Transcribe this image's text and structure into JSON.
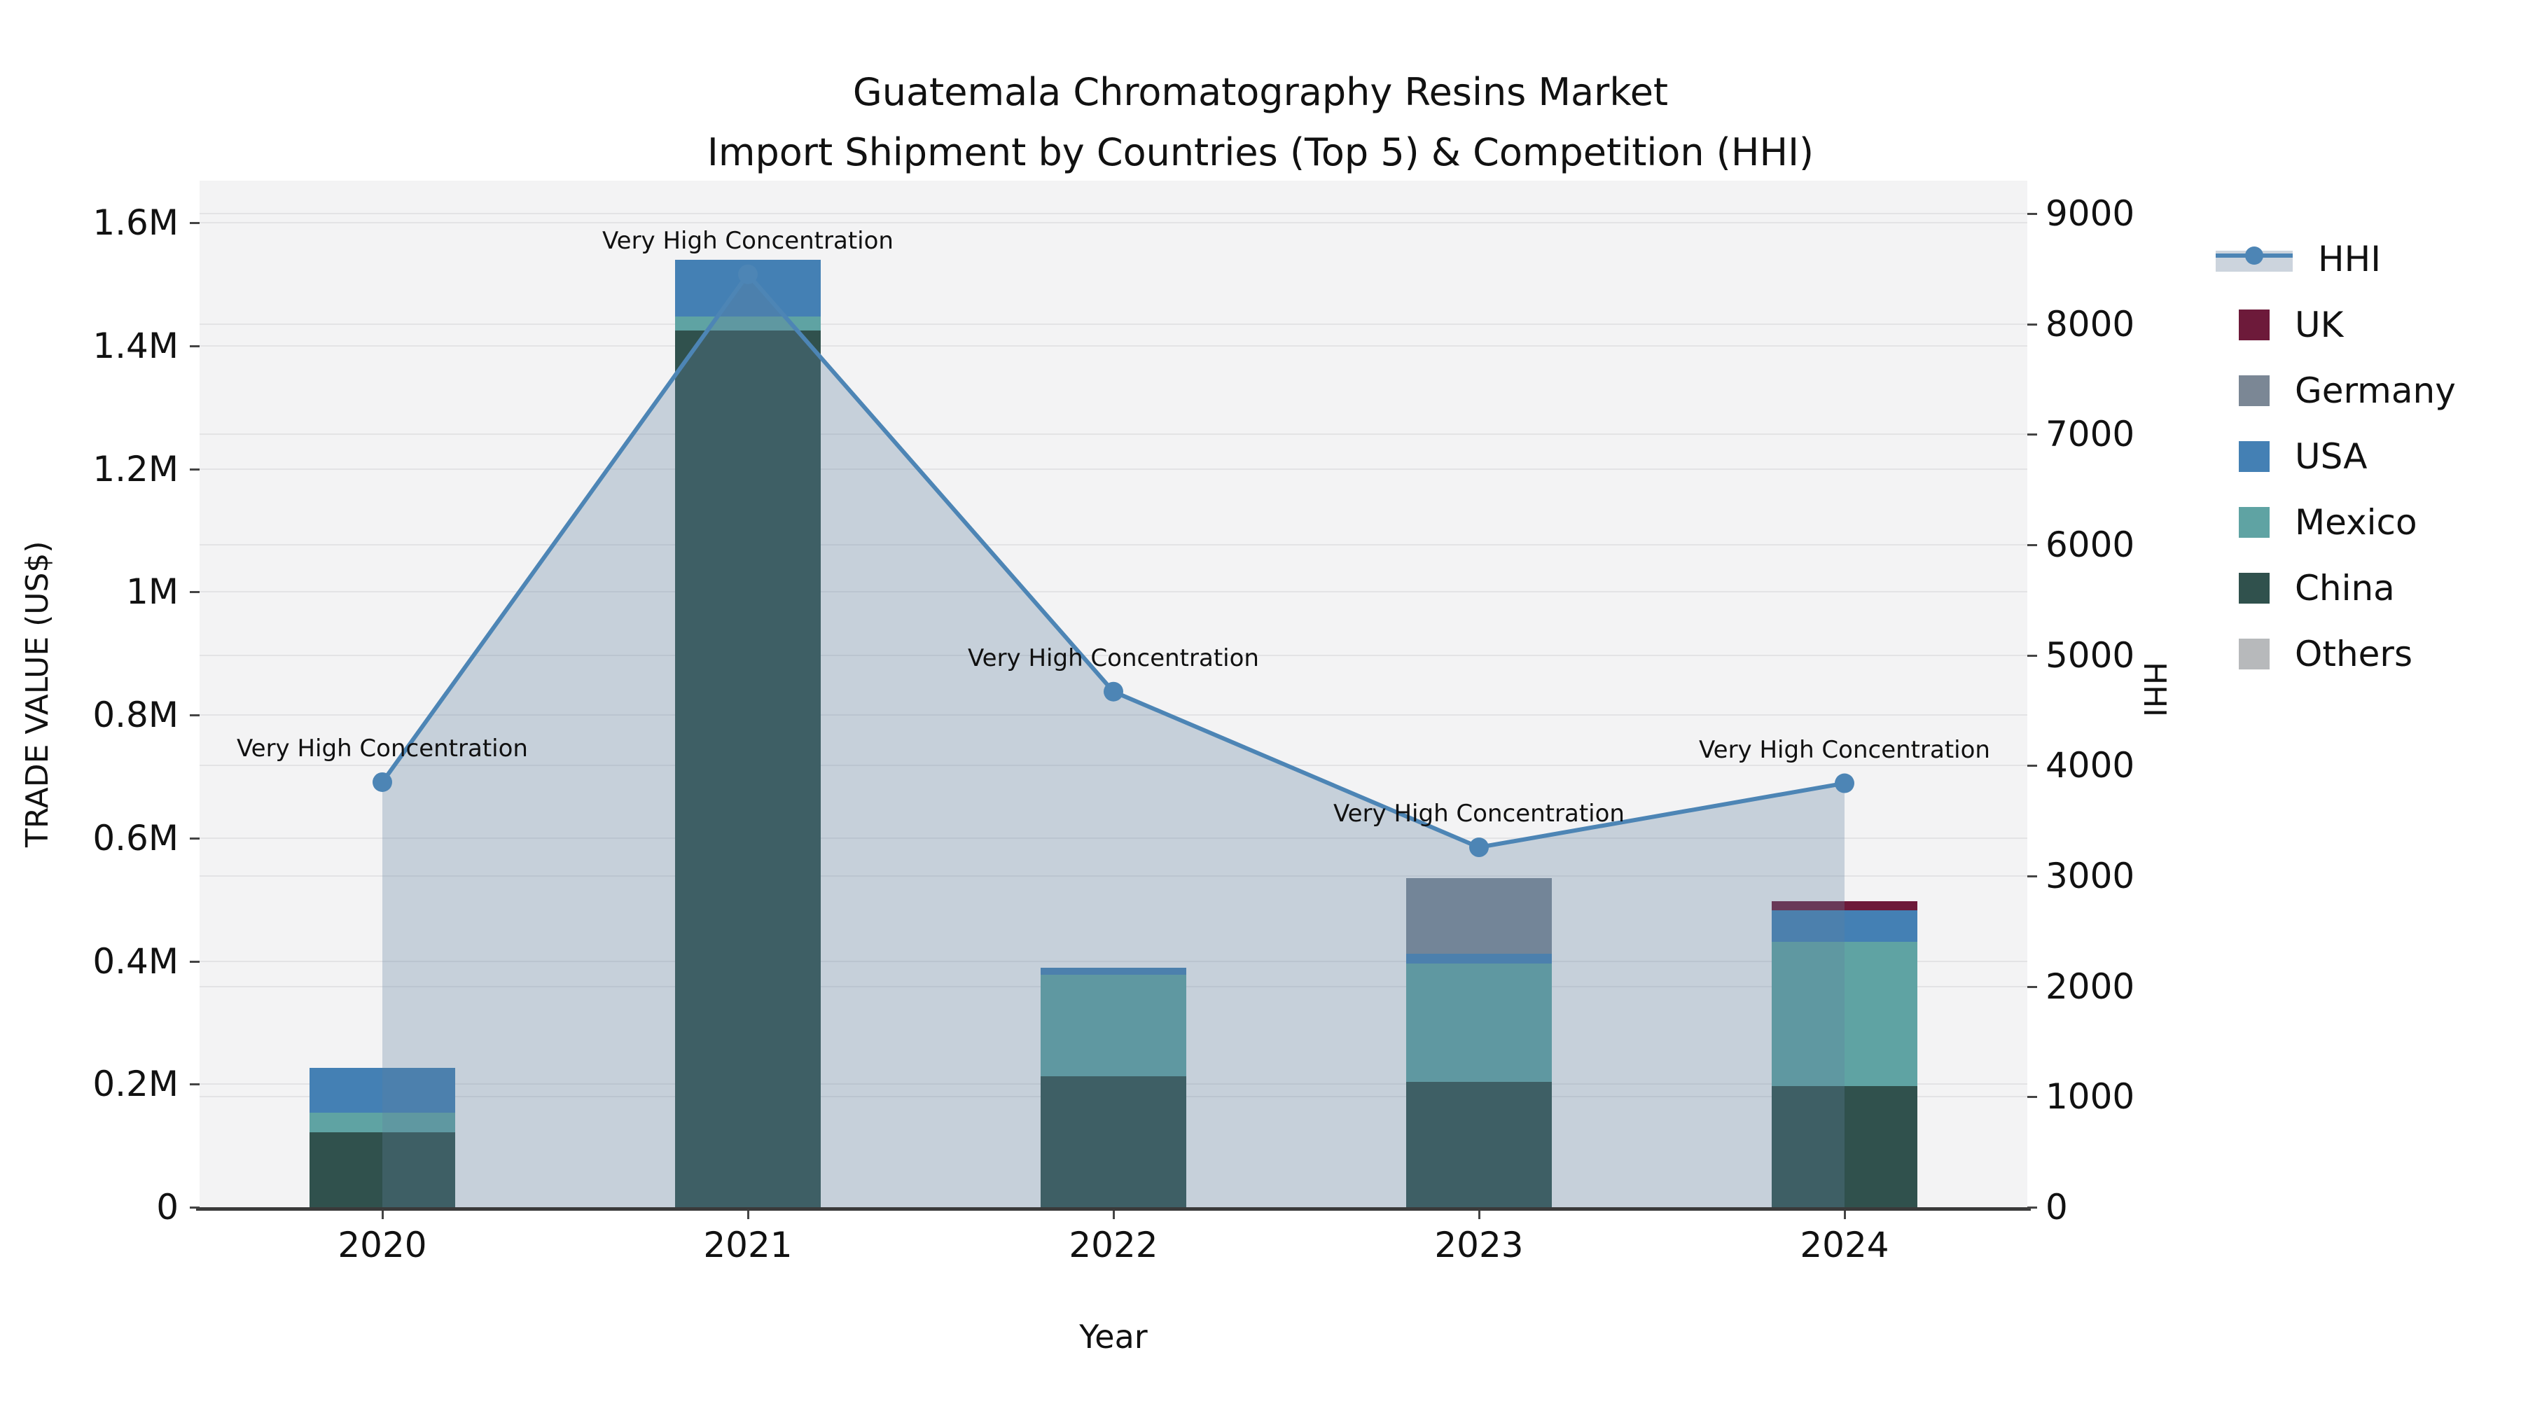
{
  "title": {
    "line1": "Guatemala Chromatography Resins Market",
    "line2": "Import Shipment by Countries (Top 5) & Competition (HHI)"
  },
  "axes": {
    "y_left_label": "TRADE VALUE (US$)",
    "y_right_label": "HHI",
    "x_label": "Year"
  },
  "colors": {
    "hhi_line": "#4d85b5",
    "hhi_area_fill": "rgba(96,128,160,0.30)",
    "uk": "#6d1a3a",
    "germany": "#7b8795",
    "usa": "#4480b4",
    "mexico": "#5fa3a3",
    "china": "#30514d",
    "others": "#b7b9bb",
    "plot_bg": "#f3f3f4",
    "gridline": "#e3e3e5",
    "legend_band": "#ccd4dd"
  },
  "legend": [
    {
      "label": "HHI",
      "type": "line",
      "color": "#4d85b5"
    },
    {
      "label": "UK",
      "type": "square",
      "color": "#6d1a3a"
    },
    {
      "label": "Germany",
      "type": "square",
      "color": "#7b8795"
    },
    {
      "label": "USA",
      "type": "square",
      "color": "#4480b4"
    },
    {
      "label": "Mexico",
      "type": "square",
      "color": "#5fa3a3"
    },
    {
      "label": "China",
      "type": "square",
      "color": "#30514d"
    },
    {
      "label": "Others",
      "type": "square",
      "color": "#b7b9bb"
    }
  ],
  "chart_data": {
    "type": [
      "bar",
      "line"
    ],
    "title": "Guatemala Chromatography Resins Market — Import Shipment by Countries (Top 5) & Competition (HHI)",
    "categories": [
      "2020",
      "2021",
      "2022",
      "2023",
      "2024"
    ],
    "bar_stack_order_bottom_to_top": [
      "China",
      "Mexico",
      "USA",
      "Germany",
      "UK",
      "Others"
    ],
    "series": [
      {
        "name": "China",
        "color": "#30514d",
        "values": [
          122000,
          1425000,
          213000,
          204000,
          197000
        ]
      },
      {
        "name": "Mexico",
        "color": "#5fa3a3",
        "values": [
          32000,
          23000,
          165000,
          192000,
          234000
        ]
      },
      {
        "name": "USA",
        "color": "#4480b4",
        "values": [
          72000,
          92000,
          11000,
          16000,
          51000
        ]
      },
      {
        "name": "Germany",
        "color": "#7b8795",
        "values": [
          0,
          0,
          0,
          123000,
          0
        ]
      },
      {
        "name": "UK",
        "color": "#6d1a3a",
        "values": [
          0,
          0,
          0,
          0,
          15000
        ]
      },
      {
        "name": "Others",
        "color": "#b7b9bb",
        "values": [
          0,
          0,
          0,
          0,
          0
        ]
      }
    ],
    "line_series": {
      "name": "HHI",
      "color": "#4d85b5",
      "values": [
        3850,
        8450,
        4670,
        3260,
        3840
      ],
      "area_fill": true
    },
    "annotations": [
      {
        "category": "2020",
        "text": "Very High Concentration"
      },
      {
        "category": "2021",
        "text": "Very High Concentration"
      },
      {
        "category": "2022",
        "text": "Very High Concentration"
      },
      {
        "category": "2023",
        "text": "Very High Concentration"
      },
      {
        "category": "2024",
        "text": "Very High Concentration"
      }
    ],
    "xlabel": "Year",
    "ylabel_left": "TRADE VALUE (US$)",
    "ylabel_right": "HHI",
    "ylim_left": [
      0,
      1600000
    ],
    "ylim_right": [
      0,
      9000
    ],
    "y_left_ticks": [
      {
        "label": "0",
        "value": 0
      },
      {
        "label": "0.2M",
        "value": 200000
      },
      {
        "label": "0.4M",
        "value": 400000
      },
      {
        "label": "0.6M",
        "value": 600000
      },
      {
        "label": "0.8M",
        "value": 800000
      },
      {
        "label": "1M",
        "value": 1000000
      },
      {
        "label": "1.2M",
        "value": 1200000
      },
      {
        "label": "1.4M",
        "value": 1400000
      },
      {
        "label": "1.6M",
        "value": 1600000
      }
    ],
    "y_right_ticks": [
      {
        "label": "0",
        "value": 0
      },
      {
        "label": "1000",
        "value": 1000
      },
      {
        "label": "2000",
        "value": 2000
      },
      {
        "label": "3000",
        "value": 3000
      },
      {
        "label": "4000",
        "value": 4000
      },
      {
        "label": "5000",
        "value": 5000
      },
      {
        "label": "6000",
        "value": 6000
      },
      {
        "label": "7000",
        "value": 7000
      },
      {
        "label": "8000",
        "value": 8000
      },
      {
        "label": "9000",
        "value": 9000
      }
    ],
    "grid": true,
    "legend_position": "right"
  }
}
